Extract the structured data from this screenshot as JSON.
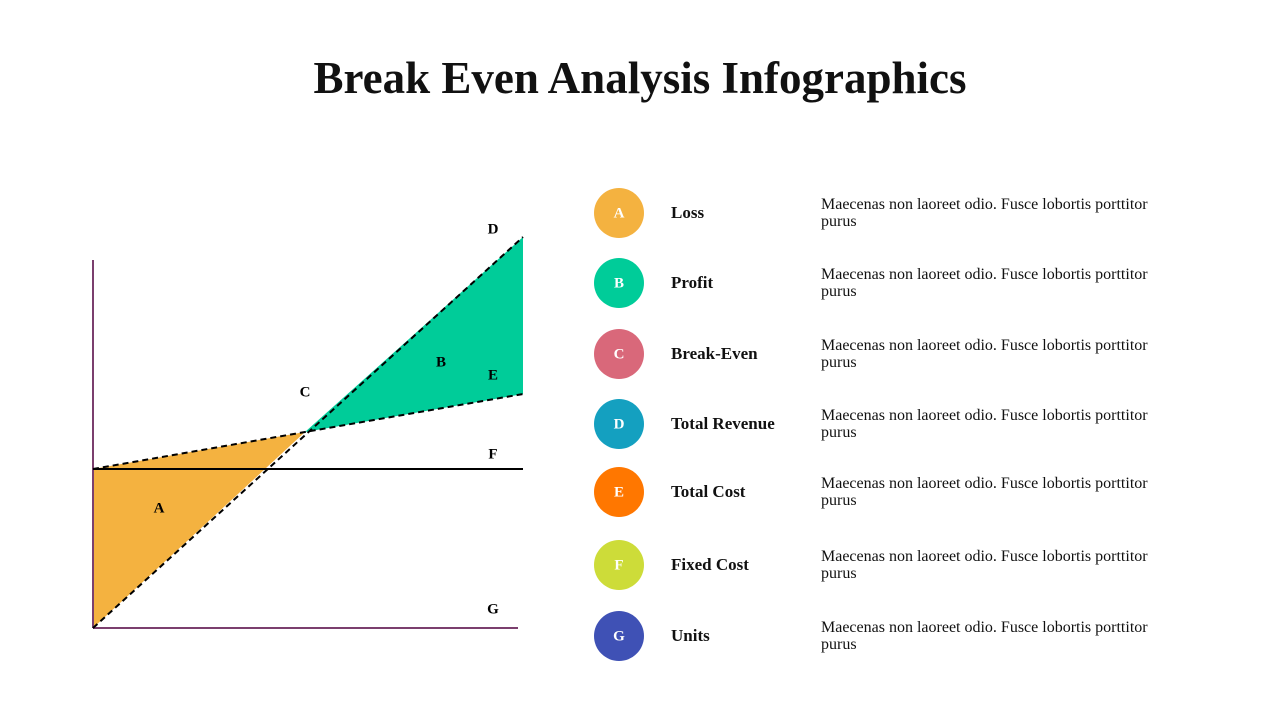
{
  "title": "Break Even Analysis Infographics",
  "diagram": {
    "labels": [
      "A",
      "B",
      "C",
      "D",
      "E",
      "F",
      "G"
    ]
  },
  "items": [
    {
      "letter": "A",
      "name": "Loss",
      "description": "Maecenas non laoreet odio. Fusce lobortis porttitor purus",
      "color": "#F4B240"
    },
    {
      "letter": "B",
      "name": "Profit",
      "description": "Maecenas non laoreet odio. Fusce lobortis porttitor purus",
      "color": "#00CC99"
    },
    {
      "letter": "C",
      "name": "Break-Even",
      "description": "Maecenas non laoreet odio. Fusce lobortis porttitor purus",
      "color": "#D9687A"
    },
    {
      "letter": "D",
      "name": "Total Revenue",
      "description": "Maecenas non laoreet odio. Fusce lobortis porttitor purus",
      "color": "#14A0C0"
    },
    {
      "letter": "E",
      "name": "Total Cost",
      "description": "Maecenas non laoreet odio. Fusce lobortis porttitor purus",
      "color": "#FF7700"
    },
    {
      "letter": "F",
      "name": "Fixed Cost",
      "description": "Maecenas non laoreet odio. Fusce lobortis porttitor purus",
      "color": "#CDDC39"
    },
    {
      "letter": "G",
      "name": "Units",
      "description": "Maecenas non laoreet odio. Fusce lobortis porttitor purus",
      "color": "#3F51B5"
    }
  ]
}
